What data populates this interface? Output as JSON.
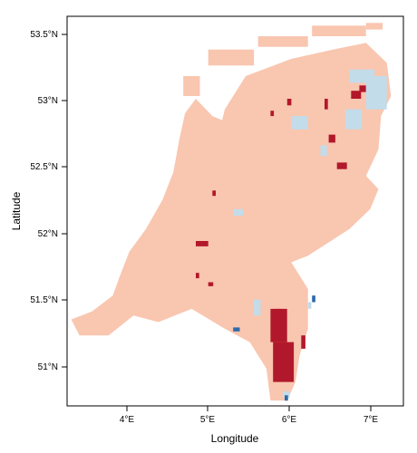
{
  "map": {
    "xlabel": "Longitude",
    "ylabel": "Latitude",
    "x_ticks": [
      "4°E",
      "5°E",
      "6°E",
      "7°E"
    ],
    "y_ticks": [
      "51°N",
      "51.5°N",
      "52°N",
      "52.5°N",
      "53°N",
      "53.5°N"
    ],
    "xlim": [
      3.3,
      7.35
    ],
    "ylim": [
      50.72,
      53.65
    ],
    "colors": {
      "land": "#f9c6b0",
      "dark_red": "#b2182b",
      "light_blue": "#c2dcea",
      "dark_blue": "#2f6aaa"
    },
    "land_outline": [
      [
        3.35,
        51.37
      ],
      [
        3.6,
        51.43
      ],
      [
        3.85,
        51.55
      ],
      [
        3.95,
        51.72
      ],
      [
        4.05,
        51.88
      ],
      [
        4.25,
        52.05
      ],
      [
        4.45,
        52.27
      ],
      [
        4.58,
        52.48
      ],
      [
        4.65,
        52.72
      ],
      [
        4.72,
        52.92
      ],
      [
        4.85,
        53.03
      ],
      [
        5.05,
        52.9
      ],
      [
        5.35,
        52.82
      ],
      [
        5.42,
        52.6
      ],
      [
        5.6,
        52.45
      ],
      [
        5.75,
        52.53
      ],
      [
        5.55,
        52.35
      ],
      [
        5.2,
        52.3
      ],
      [
        4.9,
        52.45
      ],
      [
        4.8,
        52.6
      ],
      [
        5.1,
        52.7
      ],
      [
        5.2,
        52.95
      ],
      [
        5.45,
        53.2
      ],
      [
        6.0,
        53.33
      ],
      [
        6.5,
        53.4
      ],
      [
        6.9,
        53.45
      ],
      [
        7.15,
        53.3
      ],
      [
        7.2,
        53.05
      ],
      [
        7.08,
        52.9
      ],
      [
        7.05,
        52.65
      ],
      [
        6.9,
        52.45
      ],
      [
        7.05,
        52.35
      ],
      [
        6.95,
        52.2
      ],
      [
        6.7,
        52.05
      ],
      [
        6.2,
        51.85
      ],
      [
        6.0,
        51.8
      ],
      [
        6.2,
        51.6
      ],
      [
        6.2,
        51.3
      ],
      [
        6.1,
        51.1
      ],
      [
        6.05,
        50.9
      ],
      [
        5.95,
        50.76
      ],
      [
        5.75,
        50.76
      ],
      [
        5.7,
        51.0
      ],
      [
        5.5,
        51.2
      ],
      [
        5.2,
        51.3
      ],
      [
        4.8,
        51.45
      ],
      [
        4.4,
        51.35
      ],
      [
        4.1,
        51.4
      ],
      [
        3.8,
        51.25
      ],
      [
        3.45,
        51.25
      ]
    ],
    "north_holland": [
      [
        4.55,
        52.35
      ],
      [
        4.75,
        52.95
      ],
      [
        4.95,
        52.95
      ],
      [
        4.9,
        52.55
      ],
      [
        4.6,
        52.35
      ]
    ],
    "wadden_islands": [
      [
        4.7,
        53.05,
        4.9,
        53.2
      ],
      [
        5.0,
        53.28,
        5.55,
        53.4
      ],
      [
        5.6,
        53.42,
        6.2,
        53.5
      ],
      [
        6.25,
        53.5,
        6.9,
        53.58
      ],
      [
        6.9,
        53.55,
        7.1,
        53.6
      ]
    ],
    "patches": [
      {
        "color": "dark_red",
        "cells": [
          [
            6.72,
            53.03,
            0.12,
            0.06
          ],
          [
            6.82,
            53.08,
            0.08,
            0.05
          ],
          [
            5.95,
            52.98,
            0.05,
            0.05
          ],
          [
            5.75,
            52.9,
            0.04,
            0.04
          ],
          [
            6.45,
            52.7,
            0.08,
            0.06
          ],
          [
            6.55,
            52.5,
            0.12,
            0.05
          ],
          [
            6.4,
            52.95,
            0.04,
            0.08
          ],
          [
            5.05,
            52.3,
            0.04,
            0.04
          ],
          [
            4.85,
            51.92,
            0.15,
            0.04
          ],
          [
            5.0,
            51.62,
            0.06,
            0.03
          ],
          [
            4.85,
            51.68,
            0.04,
            0.04
          ],
          [
            5.75,
            51.2,
            0.2,
            0.25
          ],
          [
            5.78,
            50.9,
            0.25,
            0.3
          ],
          [
            5.82,
            51.4,
            0.05,
            0.05
          ],
          [
            6.12,
            51.15,
            0.05,
            0.1
          ]
        ]
      },
      {
        "color": "light_blue",
        "cells": [
          [
            6.7,
            53.15,
            0.3,
            0.1
          ],
          [
            6.9,
            52.95,
            0.25,
            0.25
          ],
          [
            6.65,
            52.8,
            0.2,
            0.15
          ],
          [
            6.0,
            52.8,
            0.2,
            0.1
          ],
          [
            6.35,
            52.6,
            0.08,
            0.08
          ],
          [
            5.3,
            52.15,
            0.12,
            0.05
          ],
          [
            5.55,
            51.4,
            0.08,
            0.12
          ],
          [
            6.2,
            51.45,
            0.04,
            0.05
          ],
          [
            5.9,
            50.78,
            0.08,
            0.05
          ]
        ]
      },
      {
        "color": "dark_blue",
        "cells": [
          [
            5.3,
            51.28,
            0.08,
            0.03
          ],
          [
            6.25,
            51.5,
            0.04,
            0.05
          ],
          [
            5.92,
            50.76,
            0.04,
            0.04
          ]
        ]
      }
    ]
  }
}
